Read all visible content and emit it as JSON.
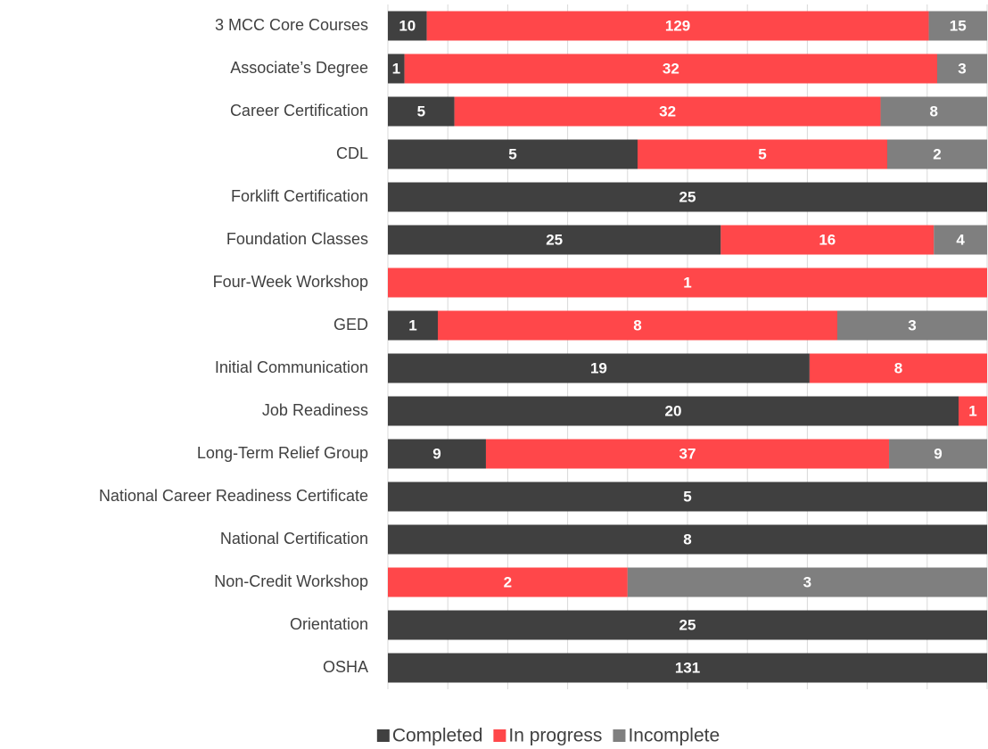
{
  "chart_data": {
    "type": "stacked-percent-bar",
    "orientation": "horizontal",
    "categories": [
      "3 MCC Core Courses",
      "Associate’s Degree",
      "Career Certification",
      "CDL",
      "Forklift Certification",
      "Foundation Classes",
      "Four-Week Workshop",
      "GED",
      "Initial Communication",
      "Job Readiness",
      "Long-Term Relief Group",
      "National Career Readiness Certificate",
      "National Certification",
      "Non-Credit Workshop",
      "Orientation",
      "OSHA"
    ],
    "series": [
      {
        "name": "Completed",
        "color": "#404040",
        "values": [
          10,
          1,
          5,
          5,
          25,
          25,
          null,
          1,
          19,
          20,
          9,
          5,
          8,
          null,
          25,
          131
        ]
      },
      {
        "name": "In progress",
        "color": "#ff474a",
        "values": [
          129,
          32,
          32,
          5,
          null,
          16,
          1,
          8,
          8,
          1,
          37,
          null,
          null,
          2,
          null,
          null
        ]
      },
      {
        "name": "Incomplete",
        "color": "#7f7f7f",
        "values": [
          15,
          3,
          8,
          2,
          null,
          4,
          null,
          3,
          null,
          null,
          9,
          null,
          null,
          3,
          null,
          null
        ]
      }
    ],
    "xlim": [
      0,
      100
    ],
    "xticks": [
      0,
      10,
      20,
      30,
      40,
      50,
      60,
      70,
      80,
      90,
      100
    ],
    "grid": true,
    "legend": "bottom"
  }
}
